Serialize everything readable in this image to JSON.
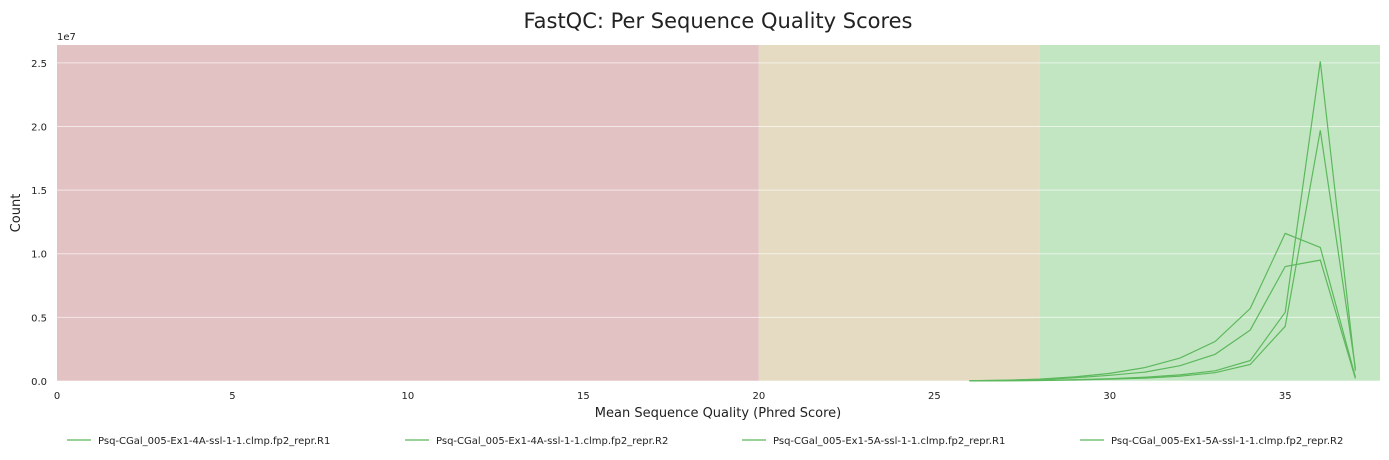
{
  "chart_data": {
    "type": "line",
    "title": "FastQC: Per Sequence Quality Scores",
    "xlabel": "Mean Sequence Quality (Phred Score)",
    "ylabel": "Count",
    "y_multiplier_label": "1e7",
    "xlim": [
      0,
      37.7
    ],
    "ylim": [
      0,
      26400000
    ],
    "x_ticks": [
      0,
      5,
      10,
      15,
      20,
      25,
      30,
      35
    ],
    "x_tick_labels": [
      "0",
      "5",
      "10",
      "15",
      "20",
      "25",
      "30",
      "35"
    ],
    "y_ticks": [
      0,
      5000000,
      10000000,
      15000000,
      20000000,
      25000000
    ],
    "y_tick_labels": [
      "0.0",
      "0.5",
      "1.0",
      "1.5",
      "2.0",
      "2.5"
    ],
    "grid": "horizontal",
    "legend_position": "bottom",
    "background_bands": [
      {
        "from": 0,
        "to": 20,
        "color": "#e3c2c3"
      },
      {
        "from": 20,
        "to": 28,
        "color": "#e4dbc2"
      },
      {
        "from": 28,
        "to": 37.7,
        "color": "#c3e6c2"
      }
    ],
    "series_color": "#5cb85c",
    "x": [
      26,
      27,
      28,
      29,
      30,
      31,
      32,
      33,
      34,
      35,
      36,
      37
    ],
    "series": [
      {
        "name": "Psq-CGal_005-Ex1-4A-ssl-1-1.clmp.fp2_repr.R1",
        "values": [
          20000,
          50000,
          120000,
          250000,
          450000,
          700000,
          1200000,
          2100000,
          4000000,
          9000000,
          9500000,
          200000
        ]
      },
      {
        "name": "Psq-CGal_005-Ex1-4A-ssl-1-1.clmp.fp2_repr.R2",
        "values": [
          20000,
          60000,
          150000,
          320000,
          600000,
          1050000,
          1800000,
          3100000,
          5700000,
          11600000,
          10500000,
          300000
        ]
      },
      {
        "name": "Psq-CGal_005-Ex1-5A-ssl-1-1.clmp.fp2_repr.R1",
        "values": [
          10000,
          20000,
          50000,
          100000,
          180000,
          300000,
          480000,
          800000,
          1600000,
          5400000,
          25100000,
          800000
        ]
      },
      {
        "name": "Psq-CGal_005-Ex1-5A-ssl-1-1.clmp.fp2_repr.R2",
        "values": [
          10000,
          15000,
          40000,
          80000,
          140000,
          230000,
          380000,
          650000,
          1300000,
          4300000,
          19700000,
          1000000
        ]
      }
    ]
  }
}
